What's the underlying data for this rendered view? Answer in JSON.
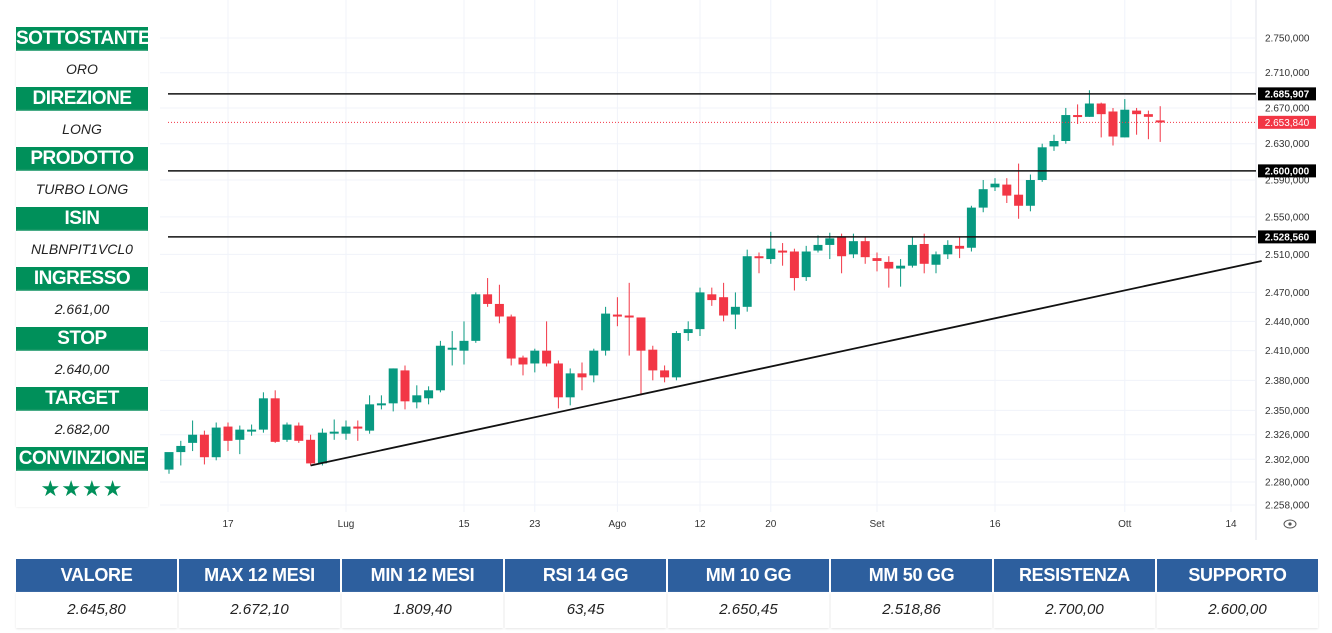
{
  "panel": [
    {
      "label": "SOTTOSTANTE",
      "value": "ORO"
    },
    {
      "label": "DIREZIONE",
      "value": "LONG"
    },
    {
      "label": "PRODOTTO",
      "value": "TURBO LONG"
    },
    {
      "label": "ISIN",
      "value": "NLBNPIT1VCL0"
    },
    {
      "label": "INGRESSO",
      "value": "2.661,00"
    },
    {
      "label": "STOP",
      "value": "2.640,00"
    },
    {
      "label": "TARGET",
      "value": "2.682,00"
    },
    {
      "label": "CONVINZIONE",
      "value": "★★★★",
      "rating": 4
    }
  ],
  "table": {
    "headers": [
      "VALORE",
      "MAX 12 MESI",
      "MIN 12 MESI",
      "RSI 14 GG",
      "MM 10 GG",
      "MM 50 GG",
      "RESISTENZA",
      "SUPPORTO"
    ],
    "values": [
      "2.645,80",
      "2.672,10",
      "1.809,40",
      "63,45",
      "2.650,45",
      "2.518,86",
      "2.700,00",
      "2.600,00"
    ]
  },
  "colors": {
    "panel_green": "#00905a",
    "table_blue": "#2d5f9e",
    "up": "#089981",
    "down": "#f23645",
    "line": "#111111"
  },
  "chart_data": {
    "type": "candlestick",
    "y_scale": "log",
    "ylim": [
      2258,
      2750
    ],
    "y_ticks": [
      "2.750,000",
      "2.710,000",
      "2.670,000",
      "2.630,000",
      "2.590,000",
      "2.550,000",
      "2.510,000",
      "2.470,000",
      "2.440,000",
      "2.410,000",
      "2.380,000",
      "2.350,000",
      "2.326,000",
      "2.302,000",
      "2.280,000",
      "2.258,000"
    ],
    "y_tick_values": [
      2750,
      2710,
      2670,
      2630,
      2590,
      2550,
      2510,
      2470,
      2440,
      2410,
      2380,
      2350,
      2326,
      2302,
      2280,
      2258
    ],
    "x_ticks": [
      {
        "label": "17",
        "index": 5
      },
      {
        "label": "Lug",
        "index": 15
      },
      {
        "label": "15",
        "index": 25
      },
      {
        "label": "23",
        "index": 31
      },
      {
        "label": "Ago",
        "index": 38
      },
      {
        "label": "12",
        "index": 45
      },
      {
        "label": "20",
        "index": 51
      },
      {
        "label": "Set",
        "index": 60
      },
      {
        "label": "16",
        "index": 70
      },
      {
        "label": "Ott",
        "index": 81
      },
      {
        "label": "14",
        "index": 90
      }
    ],
    "horizontal_levels": [
      {
        "value": 2685.907,
        "label": "2.685,907"
      },
      {
        "value": 2600,
        "label": "2.600,000"
      },
      {
        "value": 2528.56,
        "label": "2.528,560"
      }
    ],
    "last_price": {
      "value": 2653.84,
      "label": "2.653,840"
    },
    "trendline": {
      "from": {
        "index": 12,
        "price": 2296
      },
      "to": {
        "index": 92.6,
        "price": 2503
      }
    },
    "ohlc": [
      [
        2292,
        2309,
        2288,
        2292
      ],
      [
        2309,
        2315,
        2320,
        2296
      ],
      [
        2318,
        2326,
        2340,
        2310
      ],
      [
        2326,
        2304,
        2330,
        2297
      ],
      [
        2304,
        2333,
        2338,
        2301
      ],
      [
        2334,
        2320,
        2338,
        2310
      ],
      [
        2321,
        2331,
        2335,
        2307
      ],
      [
        2330,
        2331,
        2336,
        2325
      ],
      [
        2331,
        2362,
        2368,
        2328
      ],
      [
        2362,
        2319,
        2370,
        2318
      ],
      [
        2321,
        2336,
        2338,
        2319
      ],
      [
        2335,
        2320,
        2338,
        2318
      ],
      [
        2321,
        2298,
        2326,
        2296
      ],
      [
        2298,
        2328,
        2332,
        2296
      ],
      [
        2328,
        2329,
        2341,
        2321
      ],
      [
        2327,
        2334,
        2340,
        2321
      ],
      [
        2334,
        2332,
        2340,
        2320
      ],
      [
        2330,
        2356,
        2365,
        2327
      ],
      [
        2356,
        2357,
        2365,
        2351
      ],
      [
        2357,
        2392,
        2392,
        2349
      ],
      [
        2390,
        2359,
        2395,
        2351
      ],
      [
        2358,
        2365,
        2375,
        2352
      ],
      [
        2362,
        2370,
        2374,
        2356
      ],
      [
        2370,
        2415,
        2420,
        2368
      ],
      [
        2412,
        2413,
        2430,
        2395
      ],
      [
        2410,
        2420,
        2440,
        2396
      ],
      [
        2420,
        2468,
        2470,
        2418
      ],
      [
        2468,
        2458,
        2485,
        2455
      ],
      [
        2458,
        2445,
        2478,
        2438
      ],
      [
        2445,
        2402,
        2447,
        2395
      ],
      [
        2403,
        2396,
        2405,
        2385
      ],
      [
        2397,
        2410,
        2412,
        2388
      ],
      [
        2410,
        2397,
        2440,
        2394
      ],
      [
        2397,
        2363,
        2400,
        2352
      ],
      [
        2363,
        2387,
        2392,
        2355
      ],
      [
        2387,
        2383,
        2398,
        2370
      ],
      [
        2385,
        2410,
        2412,
        2378
      ],
      [
        2410,
        2448,
        2455,
        2405
      ],
      [
        2447,
        2446,
        2465,
        2435
      ],
      [
        2446,
        2444,
        2480,
        2405
      ],
      [
        2444,
        2410,
        2430,
        2365
      ],
      [
        2411,
        2390,
        2415,
        2380
      ],
      [
        2390,
        2383,
        2395,
        2378
      ],
      [
        2383,
        2428,
        2430,
        2380
      ],
      [
        2428,
        2432,
        2440,
        2420
      ],
      [
        2432,
        2470,
        2475,
        2425
      ],
      [
        2468,
        2462,
        2475,
        2456
      ],
      [
        2465,
        2446,
        2480,
        2440
      ],
      [
        2447,
        2455,
        2470,
        2432
      ],
      [
        2455,
        2508,
        2515,
        2450
      ],
      [
        2508,
        2506,
        2512,
        2490
      ],
      [
        2505,
        2516,
        2534,
        2500
      ],
      [
        2514,
        2512,
        2522,
        2498
      ],
      [
        2513,
        2485,
        2516,
        2472
      ],
      [
        2486,
        2513,
        2519,
        2482
      ],
      [
        2514,
        2520,
        2530,
        2512
      ],
      [
        2520,
        2527,
        2533,
        2505
      ],
      [
        2528,
        2508,
        2532,
        2490
      ],
      [
        2510,
        2524,
        2532,
        2506
      ],
      [
        2524,
        2507,
        2528,
        2500
      ],
      [
        2506,
        2503,
        2512,
        2492
      ],
      [
        2502,
        2495,
        2508,
        2475
      ],
      [
        2495,
        2498,
        2505,
        2476
      ],
      [
        2498,
        2520,
        2528,
        2496
      ],
      [
        2521,
        2500,
        2532,
        2490
      ],
      [
        2499,
        2510,
        2513,
        2490
      ],
      [
        2510,
        2520,
        2525,
        2505
      ],
      [
        2519,
        2516,
        2528,
        2506
      ],
      [
        2517,
        2560,
        2562,
        2513
      ],
      [
        2560,
        2580,
        2590,
        2555
      ],
      [
        2582,
        2586,
        2592,
        2578
      ],
      [
        2585,
        2573,
        2592,
        2565
      ],
      [
        2574,
        2562,
        2608,
        2548
      ],
      [
        2562,
        2590,
        2596,
        2556
      ],
      [
        2590,
        2626,
        2630,
        2588
      ],
      [
        2627,
        2633,
        2640,
        2622
      ],
      [
        2633,
        2662,
        2670,
        2630
      ],
      [
        2662,
        2660,
        2674,
        2652
      ],
      [
        2660,
        2675,
        2690,
        2660
      ],
      [
        2675,
        2663,
        2676,
        2637
      ],
      [
        2666,
        2638,
        2670,
        2628
      ],
      [
        2637,
        2668,
        2680,
        2637
      ],
      [
        2667,
        2663,
        2670,
        2640
      ],
      [
        2663,
        2660,
        2667,
        2635
      ],
      [
        2656,
        2654,
        2672,
        2632
      ]
    ]
  }
}
